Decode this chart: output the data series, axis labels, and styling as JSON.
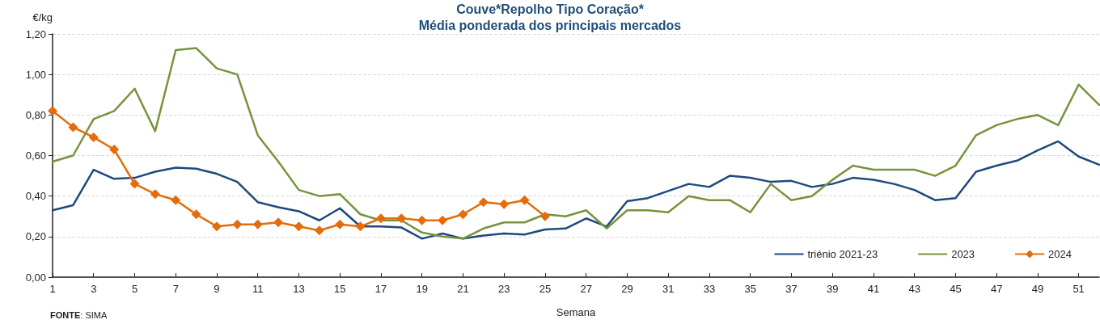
{
  "chart_data": {
    "type": "line",
    "title": "Couve*Repolho Tipo Coração*",
    "subtitle": "Média ponderada dos principais mercados",
    "xlabel": "Semana",
    "ylabel": "€/kg",
    "x": [
      1,
      2,
      3,
      4,
      5,
      6,
      7,
      8,
      9,
      10,
      11,
      12,
      13,
      14,
      15,
      16,
      17,
      18,
      19,
      20,
      21,
      22,
      23,
      24,
      25,
      26,
      27,
      28,
      29,
      30,
      31,
      32,
      33,
      34,
      35,
      36,
      37,
      38,
      39,
      40,
      41,
      42,
      43,
      44,
      45,
      46,
      47,
      48,
      49,
      50,
      51,
      52
    ],
    "xlim": [
      1,
      52
    ],
    "xticks": [
      1,
      3,
      5,
      7,
      9,
      11,
      13,
      15,
      17,
      19,
      21,
      23,
      25,
      27,
      29,
      31,
      33,
      35,
      37,
      39,
      41,
      43,
      45,
      47,
      49,
      51
    ],
    "series": [
      {
        "name": "triénio 2021-23",
        "color": "#1f497d",
        "marker": "none",
        "values": [
          0.33,
          0.355,
          0.53,
          0.485,
          0.49,
          0.52,
          0.54,
          0.535,
          0.51,
          0.47,
          0.37,
          0.345,
          0.325,
          0.28,
          0.34,
          0.25,
          0.25,
          0.245,
          0.19,
          0.215,
          0.19,
          0.205,
          0.215,
          0.21,
          0.235,
          0.24,
          0.29,
          0.25,
          0.375,
          0.39,
          0.425,
          0.46,
          0.445,
          0.5,
          0.49,
          0.47,
          0.475,
          0.445,
          0.46,
          0.49,
          0.48,
          0.46,
          0.43,
          0.38,
          0.39,
          0.52,
          0.55,
          0.575,
          0.625,
          0.67,
          0.595,
          0.555
        ]
      },
      {
        "name": "2023",
        "color": "#77933c",
        "marker": "none",
        "values": [
          0.57,
          0.6,
          0.78,
          0.82,
          0.93,
          0.72,
          1.12,
          1.13,
          1.03,
          1.0,
          0.7,
          0.57,
          0.43,
          0.4,
          0.41,
          0.31,
          0.28,
          0.28,
          0.22,
          0.2,
          0.19,
          0.24,
          0.27,
          0.27,
          0.31,
          0.3,
          0.33,
          0.24,
          0.33,
          0.33,
          0.32,
          0.4,
          0.38,
          0.38,
          0.32,
          0.46,
          0.38,
          0.4,
          0.48,
          0.55,
          0.53,
          0.53,
          0.53,
          0.5,
          0.55,
          0.7,
          0.75,
          0.78,
          0.8,
          0.75,
          0.95,
          0.85
        ]
      },
      {
        "name": "2024",
        "color": "#e46c0a",
        "marker": "diamond",
        "values": [
          0.82,
          0.74,
          0.69,
          0.63,
          0.46,
          0.41,
          0.38,
          0.31,
          0.25,
          0.26,
          0.26,
          0.27,
          0.25,
          0.23,
          0.26,
          0.25,
          0.29,
          0.29,
          0.28,
          0.28,
          0.31,
          0.37,
          0.36,
          0.38,
          0.3,
          null,
          null,
          null,
          null,
          null,
          null,
          null,
          null,
          null,
          null,
          null,
          null,
          null,
          null,
          null,
          null,
          null,
          null,
          null,
          null,
          null,
          null,
          null,
          null,
          null,
          null,
          null
        ]
      }
    ],
    "ylim": [
      0,
      1.2
    ],
    "yticks": [
      {
        "value": 0,
        "label": "0,00"
      },
      {
        "value": 0.2,
        "label": "0,20"
      },
      {
        "value": 0.4,
        "label": "0,40"
      },
      {
        "value": 0.6,
        "label": "0,60"
      },
      {
        "value": 0.8,
        "label": "0,80"
      },
      {
        "value": 1.0,
        "label": "1,00"
      },
      {
        "value": 1.2,
        "label": "1,20"
      }
    ],
    "grid": "y",
    "legend": "bottom right",
    "line_style": "solid",
    "annotations": [
      "FONTE: SIMA"
    ]
  }
}
